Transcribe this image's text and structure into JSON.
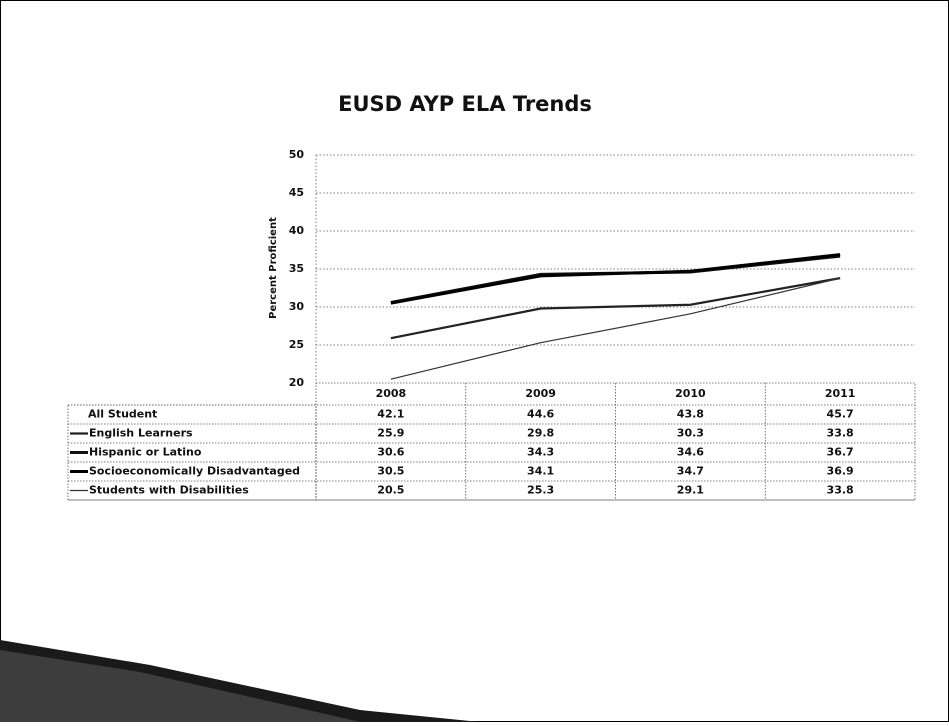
{
  "chart_data": {
    "type": "line",
    "title": "EUSD AYP ELA Trends",
    "y_label": "Percent Proficient",
    "categories": [
      "2008",
      "2009",
      "2010",
      "2011"
    ],
    "ylim": [
      20,
      50
    ],
    "yticks": [
      20,
      25,
      30,
      35,
      40,
      45,
      50
    ],
    "grid": true,
    "series": [
      {
        "name": "All Student",
        "values": [
          42.1,
          44.6,
          43.8,
          45.7
        ]
      },
      {
        "name": "English Learners",
        "color": "#222222",
        "values": [
          25.9,
          29.8,
          30.3,
          33.8
        ]
      },
      {
        "name": "Hispanic or Latino",
        "color": "#111111",
        "values": [
          30.6,
          34.3,
          34.6,
          36.7
        ]
      },
      {
        "name": "Socioeconomically Disadvantaged",
        "color": "#000000",
        "values": [
          30.5,
          34.1,
          34.7,
          36.9
        ]
      },
      {
        "name": "Students with Disabilities",
        "color": "#333333",
        "values": [
          20.5,
          25.3,
          29.1,
          33.8
        ]
      }
    ]
  }
}
